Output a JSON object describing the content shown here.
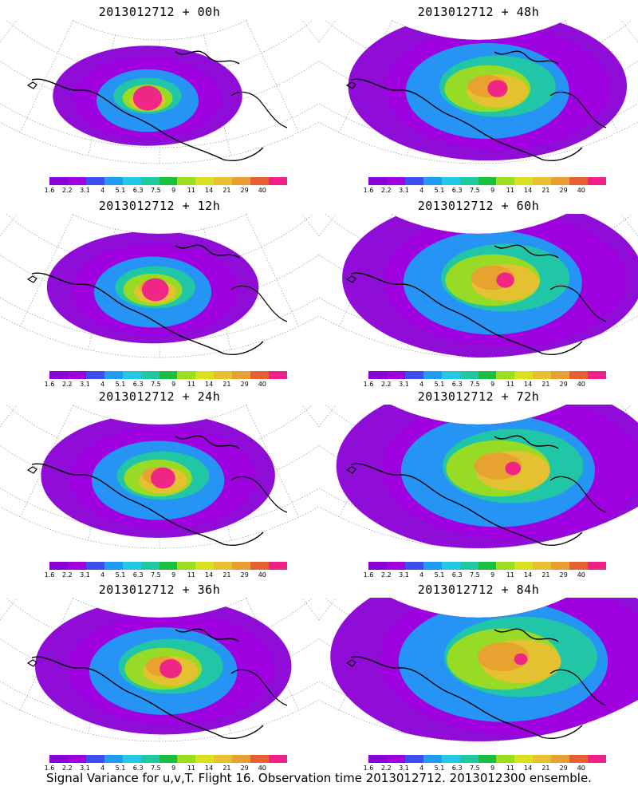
{
  "caption": "Signal Variance for u,v,T. Flight 16. Observation time 2013012712. 2013012300 ensemble.",
  "colorbar": {
    "labels": [
      "1.6",
      "2.2",
      "3.1",
      "4",
      "5.1",
      "6.3",
      "7.5",
      "9",
      "11",
      "14",
      "21",
      "29",
      "40"
    ],
    "colors": [
      "#8a00d6",
      "#a000e0",
      "#3b4ff0",
      "#1f9cf5",
      "#22c8e8",
      "#20c8a0",
      "#18c040",
      "#9edc20",
      "#d8e020",
      "#e8c030",
      "#e8a030",
      "#e86030",
      "#f0208a"
    ]
  },
  "panels": [
    {
      "title": "2013012712 + 00h",
      "level": 0
    },
    {
      "title": "2013012712 + 48h",
      "level": 4
    },
    {
      "title": "2013012712 + 12h",
      "level": 1
    },
    {
      "title": "2013012712 + 60h",
      "level": 5
    },
    {
      "title": "2013012712 + 24h",
      "level": 2
    },
    {
      "title": "2013012712 + 72h",
      "level": 6
    },
    {
      "title": "2013012712 + 36h",
      "level": 3
    },
    {
      "title": "2013012712 + 84h",
      "level": 7
    }
  ]
}
